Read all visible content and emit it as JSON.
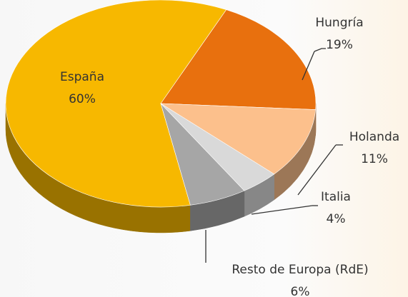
{
  "chart_data": {
    "type": "pie",
    "categories": [
      "España",
      "Hungría",
      "Holanda",
      "Italia",
      "Resto de Europa (RdE)"
    ],
    "values": [
      60,
      19,
      11,
      4,
      6
    ],
    "value_labels": [
      "60%",
      "19%",
      "11%",
      "4%",
      "6%"
    ],
    "colors": [
      "#f7b800",
      "#e8700e",
      "#fcc08c",
      "#d9d9d9",
      "#a6a6a6"
    ]
  }
}
